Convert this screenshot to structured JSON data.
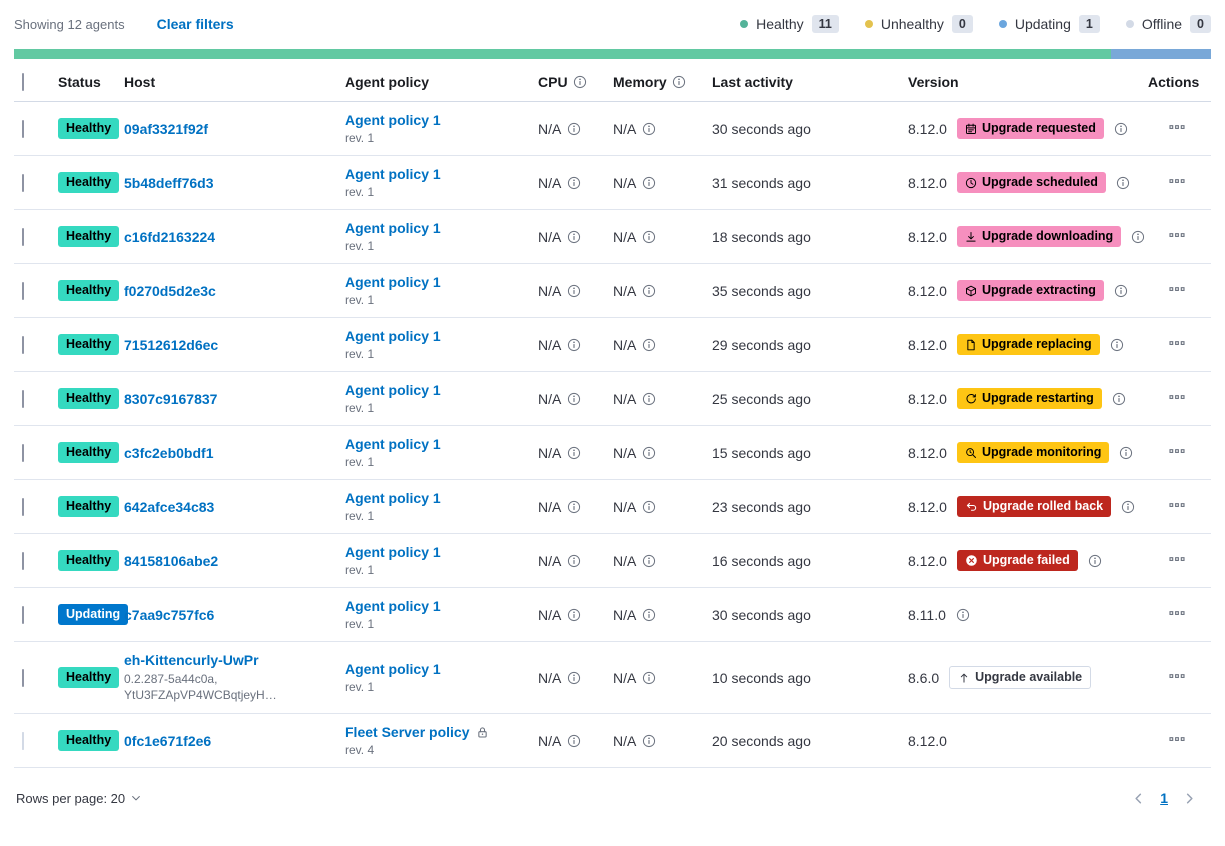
{
  "toolbar": {
    "showing_label": "Showing 12 agents",
    "clear_filters_label": "Clear filters",
    "legend": [
      {
        "label": "Healthy",
        "count": "11",
        "color": "#54b399"
      },
      {
        "label": "Unhealthy",
        "count": "0",
        "color": "#e3c24e"
      },
      {
        "label": "Updating",
        "count": "1",
        "color": "#6ba6de"
      },
      {
        "label": "Offline",
        "count": "0",
        "color": "#d3dae6"
      }
    ]
  },
  "health_bar": {
    "segments": [
      {
        "name": "healthy",
        "color": "#62c9a2",
        "fraction": 11
      },
      {
        "name": "updating",
        "color": "#79a8d8",
        "fraction": 1
      }
    ]
  },
  "table": {
    "headers": {
      "status": "Status",
      "host": "Host",
      "policy": "Agent policy",
      "cpu": "CPU",
      "memory": "Memory",
      "last_activity": "Last activity",
      "version": "Version",
      "actions": "Actions"
    },
    "na": "N/A",
    "rows": [
      {
        "status": "Healthy",
        "status_bg": "#35d9c0",
        "status_fg": "#000000",
        "host": "09af3321f92f",
        "host_sub": "",
        "policy": "Agent policy 1",
        "policy_rev": "rev. 1",
        "policy_locked": false,
        "cpu": "N/A",
        "memory": "N/A",
        "last_activity": "30 seconds ago",
        "version": "8.12.0",
        "upgrade_badge": {
          "label": "Upgrade requested",
          "icon": "calendar-icon",
          "bg": "#f68fbe",
          "fg": "#000000",
          "border": ""
        },
        "version_info": true,
        "checkbox_disabled": false
      },
      {
        "status": "Healthy",
        "status_bg": "#35d9c0",
        "status_fg": "#000000",
        "host": "5b48deff76d3",
        "host_sub": "",
        "policy": "Agent policy 1",
        "policy_rev": "rev. 1",
        "policy_locked": false,
        "cpu": "N/A",
        "memory": "N/A",
        "last_activity": "31 seconds ago",
        "version": "8.12.0",
        "upgrade_badge": {
          "label": "Upgrade scheduled",
          "icon": "clock-icon",
          "bg": "#f68fbe",
          "fg": "#000000",
          "border": ""
        },
        "version_info": true,
        "checkbox_disabled": false
      },
      {
        "status": "Healthy",
        "status_bg": "#35d9c0",
        "status_fg": "#000000",
        "host": "c16fd2163224",
        "host_sub": "",
        "policy": "Agent policy 1",
        "policy_rev": "rev. 1",
        "policy_locked": false,
        "cpu": "N/A",
        "memory": "N/A",
        "last_activity": "18 seconds ago",
        "version": "8.12.0",
        "upgrade_badge": {
          "label": "Upgrade downloading",
          "icon": "download-icon",
          "bg": "#f68fbe",
          "fg": "#000000",
          "border": ""
        },
        "version_info": true,
        "checkbox_disabled": false
      },
      {
        "status": "Healthy",
        "status_bg": "#35d9c0",
        "status_fg": "#000000",
        "host": "f0270d5d2e3c",
        "host_sub": "",
        "policy": "Agent policy 1",
        "policy_rev": "rev. 1",
        "policy_locked": false,
        "cpu": "N/A",
        "memory": "N/A",
        "last_activity": "35 seconds ago",
        "version": "8.12.0",
        "upgrade_badge": {
          "label": "Upgrade extracting",
          "icon": "package-icon",
          "bg": "#f68fbe",
          "fg": "#000000",
          "border": ""
        },
        "version_info": true,
        "checkbox_disabled": false
      },
      {
        "status": "Healthy",
        "status_bg": "#35d9c0",
        "status_fg": "#000000",
        "host": "71512612d6ec",
        "host_sub": "",
        "policy": "Agent policy 1",
        "policy_rev": "rev. 1",
        "policy_locked": false,
        "cpu": "N/A",
        "memory": "N/A",
        "last_activity": "29 seconds ago",
        "version": "8.12.0",
        "upgrade_badge": {
          "label": "Upgrade replacing",
          "icon": "document-icon",
          "bg": "#fec514",
          "fg": "#000000",
          "border": ""
        },
        "version_info": true,
        "checkbox_disabled": false
      },
      {
        "status": "Healthy",
        "status_bg": "#35d9c0",
        "status_fg": "#000000",
        "host": "8307c9167837",
        "host_sub": "",
        "policy": "Agent policy 1",
        "policy_rev": "rev. 1",
        "policy_locked": false,
        "cpu": "N/A",
        "memory": "N/A",
        "last_activity": "25 seconds ago",
        "version": "8.12.0",
        "upgrade_badge": {
          "label": "Upgrade restarting",
          "icon": "refresh-icon",
          "bg": "#fec514",
          "fg": "#000000",
          "border": ""
        },
        "version_info": true,
        "checkbox_disabled": false
      },
      {
        "status": "Healthy",
        "status_bg": "#35d9c0",
        "status_fg": "#000000",
        "host": "c3fc2eb0bdf1",
        "host_sub": "",
        "policy": "Agent policy 1",
        "policy_rev": "rev. 1",
        "policy_locked": false,
        "cpu": "N/A",
        "memory": "N/A",
        "last_activity": "15 seconds ago",
        "version": "8.12.0",
        "upgrade_badge": {
          "label": "Upgrade monitoring",
          "icon": "inspect-icon",
          "bg": "#fec514",
          "fg": "#000000",
          "border": ""
        },
        "version_info": true,
        "checkbox_disabled": false
      },
      {
        "status": "Healthy",
        "status_bg": "#35d9c0",
        "status_fg": "#000000",
        "host": "642afce34c83",
        "host_sub": "",
        "policy": "Agent policy 1",
        "policy_rev": "rev. 1",
        "policy_locked": false,
        "cpu": "N/A",
        "memory": "N/A",
        "last_activity": "23 seconds ago",
        "version": "8.12.0",
        "upgrade_badge": {
          "label": "Upgrade rolled back",
          "icon": "undo-icon",
          "bg": "#bd271e",
          "fg": "#ffffff",
          "border": ""
        },
        "version_info": true,
        "checkbox_disabled": false
      },
      {
        "status": "Healthy",
        "status_bg": "#35d9c0",
        "status_fg": "#000000",
        "host": "84158106abe2",
        "host_sub": "",
        "policy": "Agent policy 1",
        "policy_rev": "rev. 1",
        "policy_locked": false,
        "cpu": "N/A",
        "memory": "N/A",
        "last_activity": "16 seconds ago",
        "version": "8.12.0",
        "upgrade_badge": {
          "label": "Upgrade failed",
          "icon": "cross-circle-icon",
          "bg": "#bd271e",
          "fg": "#ffffff",
          "border": ""
        },
        "version_info": true,
        "checkbox_disabled": false
      },
      {
        "status": "Updating",
        "status_bg": "#0077cc",
        "status_fg": "#ffffff",
        "host": "c7aa9c757fc6",
        "host_sub": "",
        "policy": "Agent policy 1",
        "policy_rev": "rev. 1",
        "policy_locked": false,
        "cpu": "N/A",
        "memory": "N/A",
        "last_activity": "30 seconds ago",
        "version": "8.11.0",
        "upgrade_badge": null,
        "version_info": true,
        "checkbox_disabled": false
      },
      {
        "status": "Healthy",
        "status_bg": "#35d9c0",
        "status_fg": "#000000",
        "host": "eh-Kittencurly-UwPr",
        "host_sub": "0.2.287-5a44c0a,\nYtU3FZApVP4WCBqtjeyH…",
        "policy": "Agent policy 1",
        "policy_rev": "rev. 1",
        "policy_locked": false,
        "cpu": "N/A",
        "memory": "N/A",
        "last_activity": "10 seconds ago",
        "version": "8.6.0",
        "upgrade_badge": {
          "label": "Upgrade available",
          "icon": "arrow-up-icon",
          "bg": "#ffffff",
          "fg": "#343741",
          "border": "#d3dae6"
        },
        "version_info": false,
        "checkbox_disabled": false
      },
      {
        "status": "Healthy",
        "status_bg": "#35d9c0",
        "status_fg": "#000000",
        "host": "0fc1e671f2e6",
        "host_sub": "",
        "policy": "Fleet Server policy",
        "policy_rev": "rev. 4",
        "policy_locked": true,
        "cpu": "N/A",
        "memory": "N/A",
        "last_activity": "20 seconds ago",
        "version": "8.12.0",
        "upgrade_badge": null,
        "version_info": false,
        "checkbox_disabled": true
      }
    ]
  },
  "footer": {
    "rows_per_page_label": "Rows per page: 20",
    "page": "1"
  }
}
